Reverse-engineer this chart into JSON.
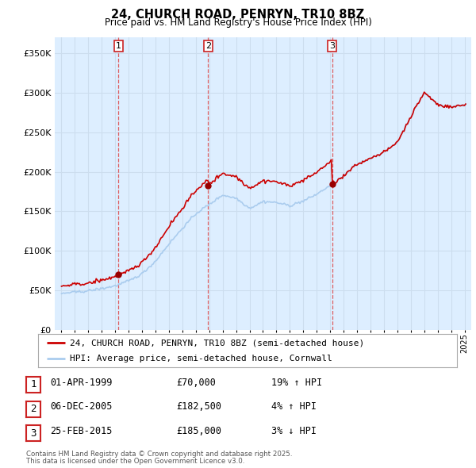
{
  "title": "24, CHURCH ROAD, PENRYN, TR10 8BZ",
  "subtitle": "Price paid vs. HM Land Registry's House Price Index (HPI)",
  "legend_line1": "24, CHURCH ROAD, PENRYN, TR10 8BZ (semi-detached house)",
  "legend_line2": "HPI: Average price, semi-detached house, Cornwall",
  "footer1": "Contains HM Land Registry data © Crown copyright and database right 2025.",
  "footer2": "This data is licensed under the Open Government Licence v3.0.",
  "table_entries": [
    {
      "num": "1",
      "date": "01-APR-1999",
      "price": "£70,000",
      "change": "19% ↑ HPI"
    },
    {
      "num": "2",
      "date": "06-DEC-2005",
      "price": "£182,500",
      "change": "4% ↑ HPI"
    },
    {
      "num": "3",
      "date": "25-FEB-2015",
      "price": "£185,000",
      "change": "3% ↓ HPI"
    }
  ],
  "sale_markers": [
    {
      "year": 1999.25,
      "price": 70000
    },
    {
      "year": 2005.92,
      "price": 182500
    },
    {
      "year": 2015.15,
      "price": 185000
    }
  ],
  "vlines": [
    1999.25,
    2005.92,
    2015.15
  ],
  "ylim": [
    0,
    370000
  ],
  "yticks": [
    0,
    50000,
    100000,
    150000,
    200000,
    250000,
    300000,
    350000
  ],
  "xlim": [
    1994.5,
    2025.5
  ],
  "red_color": "#cc0000",
  "blue_color": "#aaccee",
  "grid_color": "#ccddee",
  "bg_color": "#ddeeff",
  "vline_color": "#dd4444",
  "num_box_color": "#cc2222",
  "white": "#ffffff"
}
